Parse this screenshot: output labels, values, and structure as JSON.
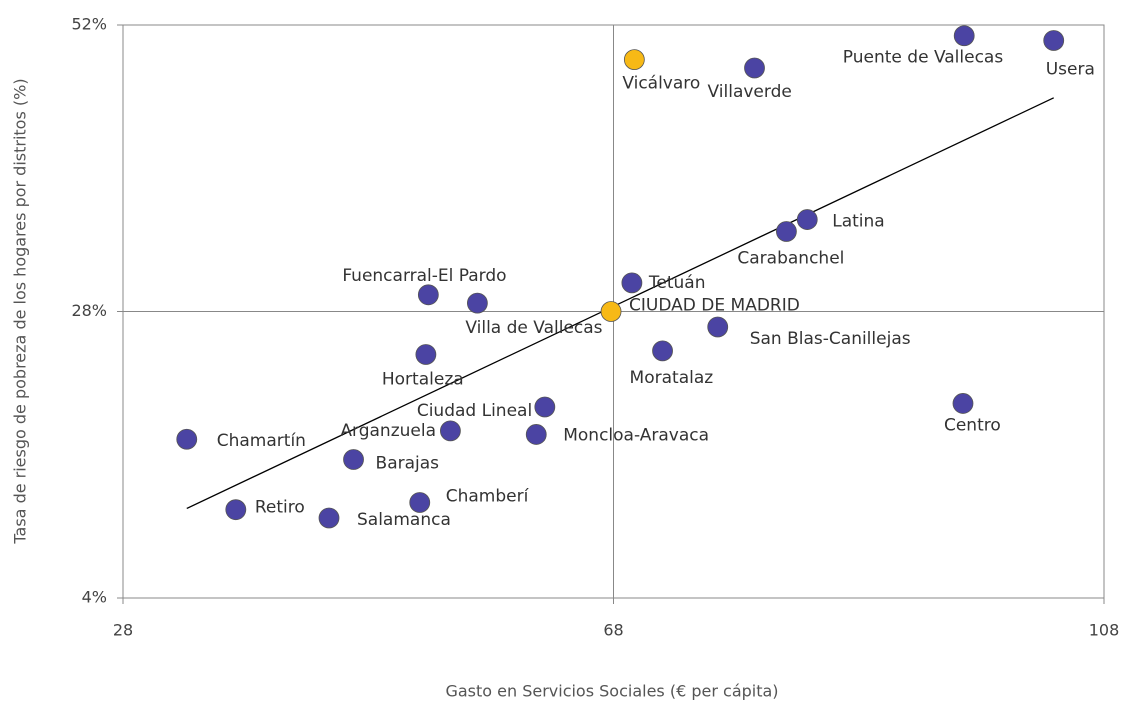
{
  "chart_data": {
    "type": "scatter",
    "xlabel": "Gasto en Servicios Sociales (€ per cápita)",
    "ylabel": "Tasa de riesgo de pobreza de los hogares por distritos (%)",
    "xlim": [
      28,
      108
    ],
    "ylim": [
      4,
      52
    ],
    "xticks": [
      28,
      68,
      108
    ],
    "yticks": [
      {
        "value": 4,
        "label": "4%"
      },
      {
        "value": 28,
        "label": "28%"
      },
      {
        "value": 52,
        "label": "52%"
      }
    ],
    "grid": true,
    "labels": [
      "Vicálvaro",
      "Villaverde",
      "Puente de Vallecas",
      "Usera",
      "Latina",
      "Carabanchel",
      "Tetuán",
      "CIUDAD DE MADRID",
      "Fuencarral-El Pardo",
      "Villa de Vallecas",
      "San Blas-Canillejas",
      "Moratalaz",
      "Hortaleza",
      "Centro",
      "Ciudad Lineal",
      "Arganzuela",
      "Moncloa-Aravaca",
      "Chamartín",
      "Barajas",
      "Chamberí",
      "Retiro",
      "Salamanca"
    ],
    "x": [
      69.7,
      79.5,
      96.6,
      103.9,
      83.8,
      82.1,
      69.5,
      67.8,
      52.9,
      56.9,
      76.5,
      72.0,
      52.7,
      96.5,
      62.4,
      54.7,
      61.7,
      33.2,
      46.8,
      52.2,
      37.2,
      44.8
    ],
    "values": [
      49.1,
      48.4,
      51.1,
      50.7,
      35.7,
      34.7,
      30.4,
      28.0,
      29.4,
      28.7,
      26.7,
      24.7,
      24.4,
      20.3,
      20.0,
      18.0,
      17.7,
      17.3,
      15.6,
      12.0,
      11.4,
      10.7
    ],
    "colors": [
      "#f7b916",
      "#4b44a3",
      "#4b44a3",
      "#4b44a3",
      "#4b44a3",
      "#4b44a3",
      "#4b44a3",
      "#f7b916",
      "#4b44a3",
      "#4b44a3",
      "#4b44a3",
      "#4b44a3",
      "#4b44a3",
      "#4b44a3",
      "#4b44a3",
      "#4b44a3",
      "#4b44a3",
      "#4b44a3",
      "#4b44a3",
      "#4b44a3",
      "#4b44a3",
      "#4b44a3"
    ],
    "trend_line": {
      "x": [
        33.2,
        103.9
      ],
      "y": [
        11.5,
        45.9
      ],
      "color": "#000000"
    }
  }
}
